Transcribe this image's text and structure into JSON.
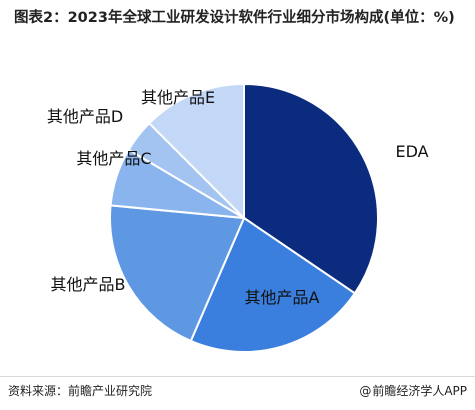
{
  "title": "图表2：2023年全球工业研发设计软件行业细分市场构成(单位：%)",
  "footer": {
    "source": "资料来源：前瞻产业研究院",
    "brand": "前瞻经济学人APP",
    "brand_icon": "at-icon"
  },
  "colors": {
    "EDA": "#0b2c7e",
    "A": "#3a7fde",
    "B": "#5e98e3",
    "C": "#8ab4ee",
    "D": "#a3c4f0",
    "E": "#c2d8f6"
  },
  "chart_data": {
    "type": "pie",
    "title": "图表2：2023年全球工业研发设计软件行业细分市场构成(单位：%)",
    "slices": [
      {
        "label": "EDA",
        "value": 34.5
      },
      {
        "label": "其他产品A",
        "value": 22.0
      },
      {
        "label": "其他产品B",
        "value": 20.0
      },
      {
        "label": "其他产品C",
        "value": 7.0
      },
      {
        "label": "其他产品D",
        "value": 4.0
      },
      {
        "label": "其他产品E",
        "value": 12.5
      }
    ],
    "legend": "none"
  }
}
